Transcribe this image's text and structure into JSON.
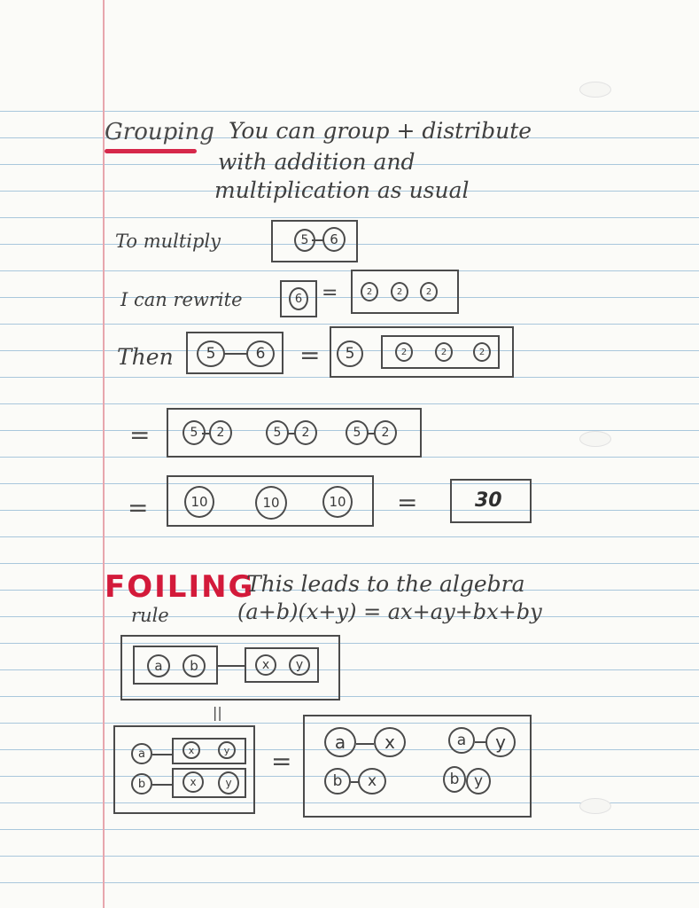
{
  "grouping": {
    "heading": "Grouping",
    "line1": "You can group + distribute",
    "line2": "with addition and",
    "line3": "multiplication as usual"
  },
  "example": {
    "to_multiply": "To multiply",
    "rewrite": "I can rewrite",
    "then": "Then",
    "eq": "=",
    "a": "5",
    "b": "6",
    "two": "2",
    "ten": "10",
    "result": "30"
  },
  "foiling": {
    "heading": "FOILING",
    "line1": "This leads to the algebra",
    "rule_label": "rule",
    "formula": "(a+b)(x+y) = ax+ay+bx+by",
    "equals_vertical": "||",
    "a": "a",
    "b": "b",
    "x": "x",
    "y": "y"
  },
  "colors": {
    "heading_underline": "#d6284a",
    "foil_heading": "#d31a3a",
    "ruled_line": "#a9c7dc",
    "margin_line": "#e7a6ad",
    "pencil": "#4b4b4b"
  }
}
